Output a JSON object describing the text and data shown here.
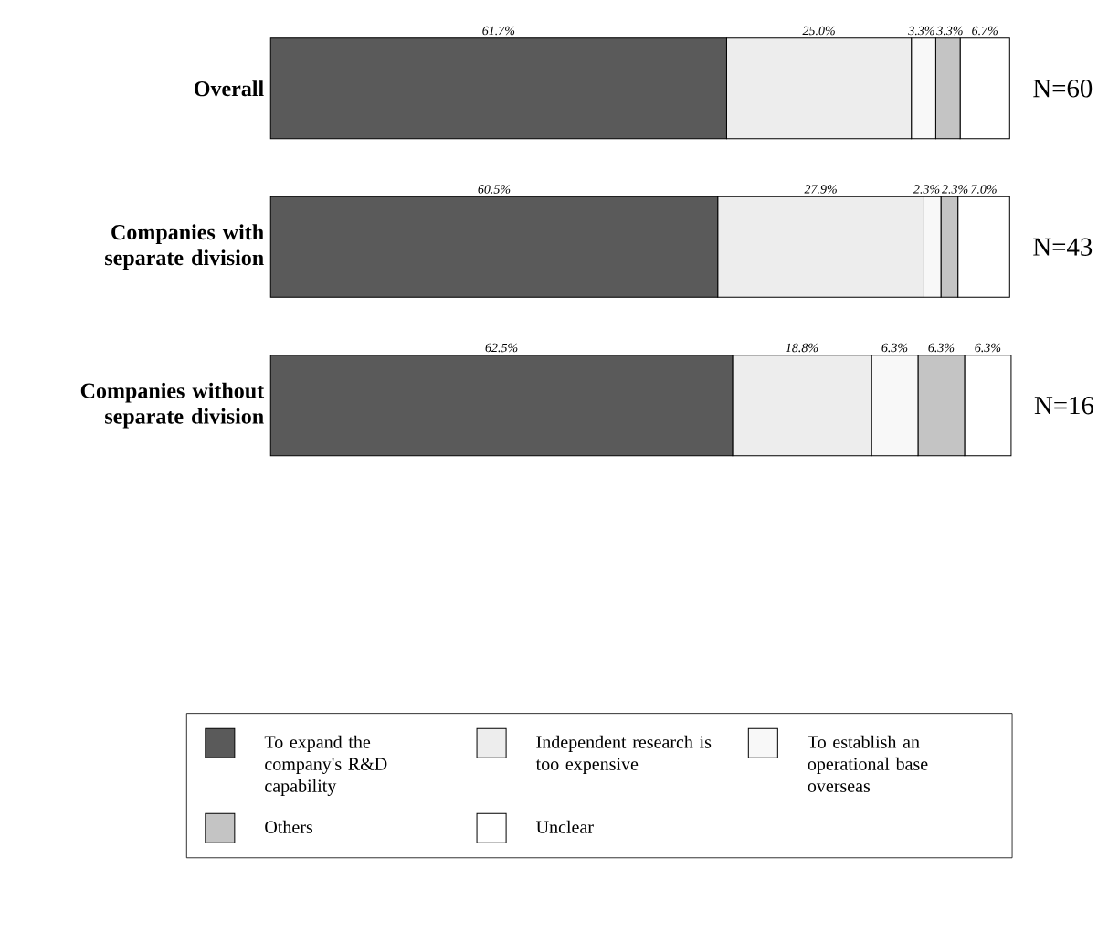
{
  "chart_data": {
    "type": "bar",
    "orientation": "horizontal",
    "stacked": true,
    "legend": "bottom",
    "categories": [
      "Overall",
      "Companies with separate division",
      "Companies without separate division"
    ],
    "series": [
      {
        "name": "To expand the company's R&D capability",
        "color": "#5a5a5a",
        "values": [
          61.7,
          60.5,
          62.5
        ],
        "value_labels": [
          "61.7%",
          "60.5%",
          "62.5%"
        ]
      },
      {
        "name": "Independent research is too expensive",
        "color": "#ededed",
        "values": [
          25.0,
          27.9,
          18.8
        ],
        "value_labels": [
          "25.0%",
          "27.9%",
          "18.8%"
        ]
      },
      {
        "name": "To establish an operational base overseas",
        "color": "#f8f8f8",
        "values": [
          3.3,
          2.3,
          6.3
        ],
        "value_labels": [
          "3.3%",
          "2.3%",
          "6.3%"
        ]
      },
      {
        "name": "Others",
        "color": "#c4c4c4",
        "values": [
          3.3,
          2.3,
          6.3
        ],
        "value_labels": [
          "3.3%",
          "2.3%",
          "6.3%"
        ]
      },
      {
        "name": "Unclear",
        "color": "#ffffff",
        "values": [
          6.7,
          7.0,
          6.3
        ],
        "value_labels": [
          "6.7%",
          "7.0%",
          "6.3%"
        ]
      }
    ],
    "annotations": [
      "N=60",
      "N=43",
      "N=16"
    ]
  }
}
